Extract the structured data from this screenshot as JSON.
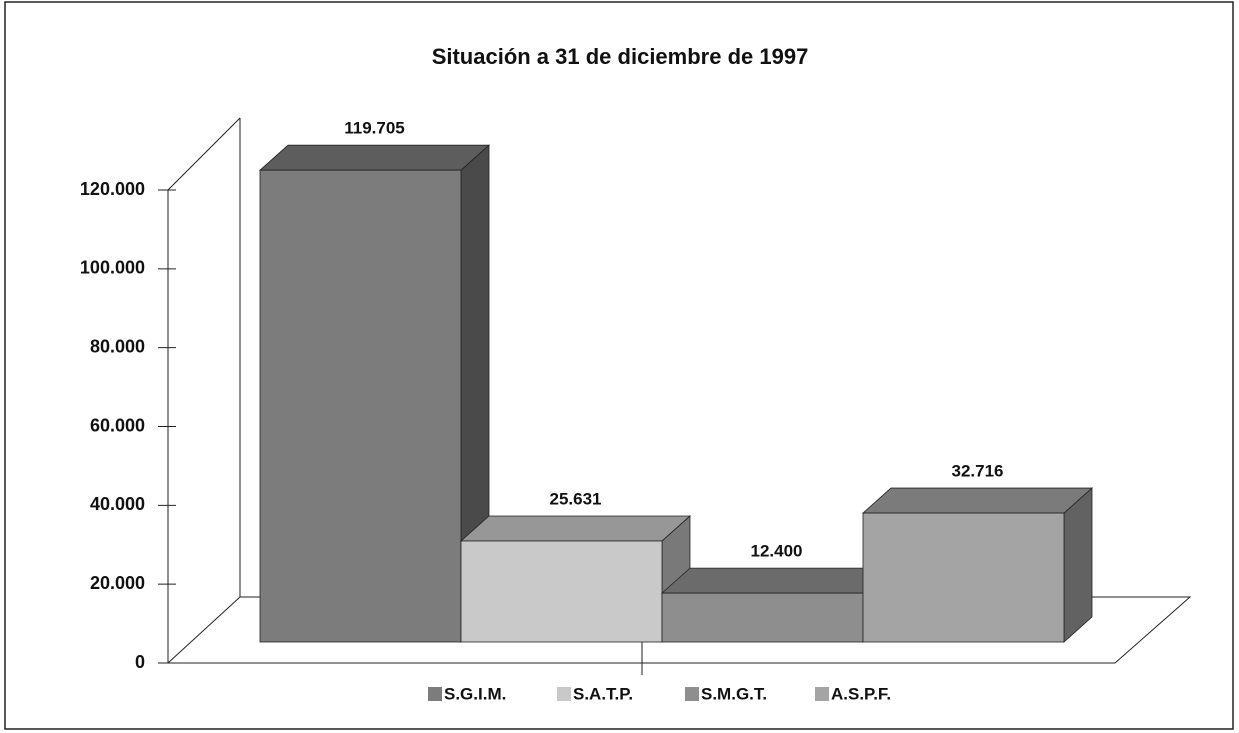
{
  "chart_data": {
    "type": "bar3d",
    "title": "Situación a 31 de diciembre de 1997",
    "series": [
      {
        "name": "S.G.I.M.",
        "color": "#7c7c7c",
        "values": [
          119705
        ],
        "value_labels": [
          "119.705"
        ]
      },
      {
        "name": "S.A.T.P.",
        "color": "#c9c9c9",
        "values": [
          25631
        ],
        "value_labels": [
          "25.631"
        ]
      },
      {
        "name": "S.M.G.T.",
        "color": "#8e8e8e",
        "values": [
          12400
        ],
        "value_labels": [
          "12.400"
        ]
      },
      {
        "name": "A.S.P.F.",
        "color": "#a4a4a4",
        "values": [
          32716
        ],
        "value_labels": [
          "32.716"
        ]
      }
    ],
    "ylim": [
      0,
      120000
    ],
    "yticks": [
      0,
      {
        "value": 20000,
        "label": "20.000"
      },
      {
        "value": 40000,
        "label": "40.000"
      },
      {
        "value": 60000,
        "label": "60.000"
      },
      {
        "value": 80000,
        "label": "80.000"
      },
      {
        "value": 100000,
        "label": "100.000"
      },
      {
        "value": 120000,
        "label": "120.000"
      }
    ],
    "legend": "bottom"
  }
}
